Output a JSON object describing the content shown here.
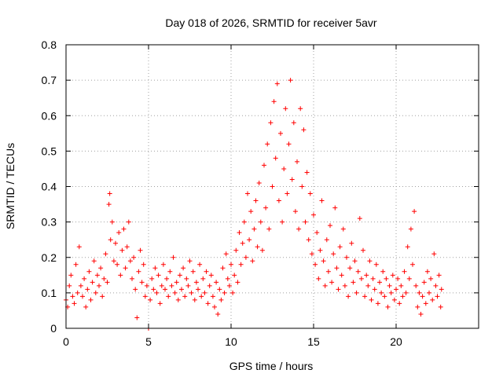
{
  "chart_data": {
    "type": "scatter",
    "title": "Day 018 of 2026, SRMTID for receiver 5avr",
    "xlabel": "GPS time / hours",
    "ylabel": "SRMTID / TECUs",
    "xlim": [
      0,
      25
    ],
    "ylim": [
      0,
      0.8
    ],
    "xticks": [
      "0",
      "5",
      "10",
      "15",
      "20"
    ],
    "yticks": [
      "0",
      "0.1",
      "0.2",
      "0.3",
      "0.4",
      "0.5",
      "0.6",
      "0.7",
      "0.8"
    ],
    "grid": true,
    "marker": "+",
    "color": "#ff0000",
    "series": [
      {
        "name": "SRMTID",
        "points": [
          [
            0.0,
            0.08
          ],
          [
            0.1,
            0.06
          ],
          [
            0.2,
            0.12
          ],
          [
            0.3,
            0.15
          ],
          [
            0.4,
            0.09
          ],
          [
            0.5,
            0.07
          ],
          [
            0.6,
            0.18
          ],
          [
            0.7,
            0.1
          ],
          [
            0.8,
            0.23
          ],
          [
            0.9,
            0.12
          ],
          [
            1.0,
            0.09
          ],
          [
            1.1,
            0.14
          ],
          [
            1.2,
            0.06
          ],
          [
            1.3,
            0.11
          ],
          [
            1.4,
            0.16
          ],
          [
            1.5,
            0.08
          ],
          [
            1.6,
            0.13
          ],
          [
            1.7,
            0.19
          ],
          [
            1.8,
            0.1
          ],
          [
            1.9,
            0.15
          ],
          [
            2.0,
            0.12
          ],
          [
            2.1,
            0.17
          ],
          [
            2.2,
            0.09
          ],
          [
            2.3,
            0.14
          ],
          [
            2.4,
            0.21
          ],
          [
            2.5,
            0.13
          ],
          [
            2.6,
            0.35
          ],
          [
            2.65,
            0.38
          ],
          [
            2.7,
            0.25
          ],
          [
            2.8,
            0.3
          ],
          [
            2.9,
            0.19
          ],
          [
            3.0,
            0.24
          ],
          [
            3.1,
            0.18
          ],
          [
            3.2,
            0.27
          ],
          [
            3.3,
            0.15
          ],
          [
            3.4,
            0.22
          ],
          [
            3.5,
            0.28
          ],
          [
            3.6,
            0.17
          ],
          [
            3.7,
            0.23
          ],
          [
            3.8,
            0.3
          ],
          [
            3.9,
            0.19
          ],
          [
            4.0,
            0.14
          ],
          [
            4.1,
            0.2
          ],
          [
            4.2,
            0.11
          ],
          [
            4.3,
            0.03
          ],
          [
            4.4,
            0.16
          ],
          [
            4.5,
            0.22
          ],
          [
            4.6,
            0.13
          ],
          [
            4.7,
            0.18
          ],
          [
            4.8,
            0.09
          ],
          [
            4.9,
            0.12
          ],
          [
            5.0,
            0.0
          ],
          [
            5.1,
            0.08
          ],
          [
            5.2,
            0.14
          ],
          [
            5.3,
            0.11
          ],
          [
            5.4,
            0.17
          ],
          [
            5.5,
            0.1
          ],
          [
            5.6,
            0.15
          ],
          [
            5.7,
            0.07
          ],
          [
            5.8,
            0.12
          ],
          [
            5.9,
            0.18
          ],
          [
            6.0,
            0.11
          ],
          [
            6.1,
            0.14
          ],
          [
            6.2,
            0.09
          ],
          [
            6.3,
            0.16
          ],
          [
            6.4,
            0.12
          ],
          [
            6.5,
            0.2
          ],
          [
            6.6,
            0.1
          ],
          [
            6.7,
            0.13
          ],
          [
            6.8,
            0.08
          ],
          [
            6.9,
            0.15
          ],
          [
            7.0,
            0.11
          ],
          [
            7.1,
            0.17
          ],
          [
            7.2,
            0.09
          ],
          [
            7.3,
            0.14
          ],
          [
            7.4,
            0.12
          ],
          [
            7.5,
            0.19
          ],
          [
            7.6,
            0.1
          ],
          [
            7.7,
            0.16
          ],
          [
            7.8,
            0.08
          ],
          [
            7.9,
            0.13
          ],
          [
            8.0,
            0.11
          ],
          [
            8.1,
            0.18
          ],
          [
            8.2,
            0.09
          ],
          [
            8.3,
            0.14
          ],
          [
            8.4,
            0.1
          ],
          [
            8.5,
            0.16
          ],
          [
            8.6,
            0.07
          ],
          [
            8.7,
            0.12
          ],
          [
            8.8,
            0.15
          ],
          [
            8.9,
            0.09
          ],
          [
            9.0,
            0.06
          ],
          [
            9.1,
            0.13
          ],
          [
            9.2,
            0.04
          ],
          [
            9.3,
            0.11
          ],
          [
            9.4,
            0.08
          ],
          [
            9.5,
            0.17
          ],
          [
            9.6,
            0.1
          ],
          [
            9.7,
            0.21
          ],
          [
            9.8,
            0.14
          ],
          [
            9.9,
            0.12
          ],
          [
            10.0,
            0.18
          ],
          [
            10.1,
            0.1
          ],
          [
            10.2,
            0.15
          ],
          [
            10.3,
            0.22
          ],
          [
            10.4,
            0.13
          ],
          [
            10.5,
            0.27
          ],
          [
            10.6,
            0.18
          ],
          [
            10.7,
            0.24
          ],
          [
            10.8,
            0.3
          ],
          [
            10.9,
            0.2
          ],
          [
            11.0,
            0.38
          ],
          [
            11.1,
            0.25
          ],
          [
            11.2,
            0.33
          ],
          [
            11.3,
            0.19
          ],
          [
            11.4,
            0.28
          ],
          [
            11.5,
            0.36
          ],
          [
            11.6,
            0.23
          ],
          [
            11.7,
            0.41
          ],
          [
            11.8,
            0.3
          ],
          [
            11.9,
            0.22
          ],
          [
            12.0,
            0.46
          ],
          [
            12.1,
            0.34
          ],
          [
            12.2,
            0.52
          ],
          [
            12.3,
            0.28
          ],
          [
            12.4,
            0.58
          ],
          [
            12.5,
            0.4
          ],
          [
            12.6,
            0.64
          ],
          [
            12.7,
            0.48
          ],
          [
            12.8,
            0.69
          ],
          [
            12.9,
            0.36
          ],
          [
            13.0,
            0.55
          ],
          [
            13.1,
            0.3
          ],
          [
            13.2,
            0.45
          ],
          [
            13.3,
            0.62
          ],
          [
            13.4,
            0.38
          ],
          [
            13.5,
            0.52
          ],
          [
            13.6,
            0.7
          ],
          [
            13.7,
            0.42
          ],
          [
            13.8,
            0.58
          ],
          [
            13.9,
            0.33
          ],
          [
            14.0,
            0.47
          ],
          [
            14.1,
            0.28
          ],
          [
            14.2,
            0.62
          ],
          [
            14.3,
            0.4
          ],
          [
            14.4,
            0.56
          ],
          [
            14.5,
            0.3
          ],
          [
            14.6,
            0.44
          ],
          [
            14.7,
            0.25
          ],
          [
            14.8,
            0.38
          ],
          [
            14.9,
            0.21
          ],
          [
            15.0,
            0.32
          ],
          [
            15.1,
            0.18
          ],
          [
            15.2,
            0.27
          ],
          [
            15.3,
            0.14
          ],
          [
            15.4,
            0.22
          ],
          [
            15.5,
            0.36
          ],
          [
            15.6,
            0.19
          ],
          [
            15.7,
            0.12
          ],
          [
            15.8,
            0.25
          ],
          [
            15.9,
            0.16
          ],
          [
            16.0,
            0.29
          ],
          [
            16.1,
            0.13
          ],
          [
            16.2,
            0.21
          ],
          [
            16.3,
            0.34
          ],
          [
            16.4,
            0.17
          ],
          [
            16.5,
            0.11
          ],
          [
            16.6,
            0.23
          ],
          [
            16.7,
            0.15
          ],
          [
            16.8,
            0.28
          ],
          [
            16.9,
            0.12
          ],
          [
            17.0,
            0.2
          ],
          [
            17.1,
            0.09
          ],
          [
            17.2,
            0.17
          ],
          [
            17.3,
            0.24
          ],
          [
            17.4,
            0.13
          ],
          [
            17.5,
            0.19
          ],
          [
            17.6,
            0.1
          ],
          [
            17.7,
            0.16
          ],
          [
            17.8,
            0.31
          ],
          [
            17.9,
            0.14
          ],
          [
            18.0,
            0.22
          ],
          [
            18.1,
            0.09
          ],
          [
            18.2,
            0.15
          ],
          [
            18.3,
            0.12
          ],
          [
            18.4,
            0.19
          ],
          [
            18.5,
            0.08
          ],
          [
            18.6,
            0.14
          ],
          [
            18.7,
            0.11
          ],
          [
            18.8,
            0.18
          ],
          [
            18.9,
            0.07
          ],
          [
            19.0,
            0.13
          ],
          [
            19.1,
            0.1
          ],
          [
            19.2,
            0.16
          ],
          [
            19.3,
            0.09
          ],
          [
            19.4,
            0.14
          ],
          [
            19.5,
            0.06
          ],
          [
            19.6,
            0.12
          ],
          [
            19.7,
            0.1
          ],
          [
            19.8,
            0.15
          ],
          [
            19.9,
            0.08
          ],
          [
            20.0,
            0.11
          ],
          [
            20.1,
            0.14
          ],
          [
            20.2,
            0.07
          ],
          [
            20.3,
            0.12
          ],
          [
            20.4,
            0.09
          ],
          [
            20.5,
            0.16
          ],
          [
            20.6,
            0.1
          ],
          [
            20.7,
            0.23
          ],
          [
            20.8,
            0.14
          ],
          [
            20.9,
            0.28
          ],
          [
            21.0,
            0.18
          ],
          [
            21.1,
            0.33
          ],
          [
            21.2,
            0.12
          ],
          [
            21.3,
            0.06
          ],
          [
            21.4,
            0.1
          ],
          [
            21.5,
            0.04
          ],
          [
            21.6,
            0.09
          ],
          [
            21.7,
            0.13
          ],
          [
            21.8,
            0.07
          ],
          [
            21.9,
            0.16
          ],
          [
            22.0,
            0.1
          ],
          [
            22.1,
            0.14
          ],
          [
            22.2,
            0.08
          ],
          [
            22.3,
            0.21
          ],
          [
            22.4,
            0.12
          ],
          [
            22.5,
            0.09
          ],
          [
            22.6,
            0.15
          ],
          [
            22.7,
            0.06
          ],
          [
            22.75,
            0.11
          ]
        ]
      }
    ]
  }
}
